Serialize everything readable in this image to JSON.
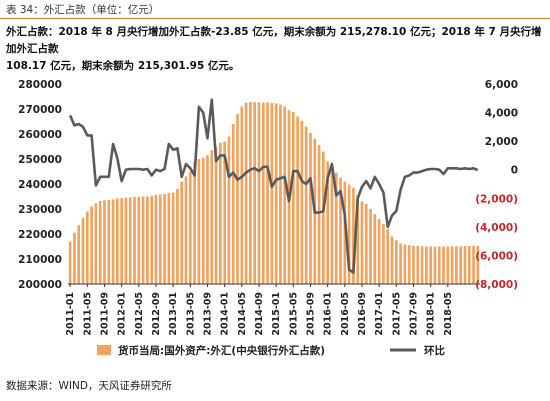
{
  "caption": {
    "label": "表 34：外汇占款（单位：亿元）"
  },
  "summary": {
    "line1": "外汇占款：2018 年 8 月央行增加外汇占款-23.85 亿元，期末余额为 215,278.10 亿元；2018 年 7 月央行增加外汇占款",
    "line2": "108.17 亿元，期末余额为 215,301.95 亿元。"
  },
  "source": {
    "label": "数据来源：WIND，天风证券研究所"
  },
  "chart_data": {
    "type": "bar",
    "x_tick_labels": [
      "2011-01",
      "2011-05",
      "2011-09",
      "2012-01",
      "2012-05",
      "2012-09",
      "2013-01",
      "2013-05",
      "2013-09",
      "2014-01",
      "2014-05",
      "2014-09",
      "2015-01",
      "2015-05",
      "2015-09",
      "2016-01",
      "2016-05",
      "2016-09",
      "2017-01",
      "2017-05",
      "2017-09",
      "2018-01",
      "2018-05"
    ],
    "y_left_ticks": [
      "200000",
      "210000",
      "220000",
      "230000",
      "240000",
      "250000",
      "260000",
      "270000",
      "280000"
    ],
    "y_left_lim": [
      200000,
      280000
    ],
    "y_right_ticks": [
      "6,000",
      "4,000",
      "2,000",
      "0",
      "(2,000)",
      "(4,000)",
      "(6,000)",
      "(8,000)"
    ],
    "y_right_tick_values": [
      6000,
      4000,
      2000,
      0,
      -2000,
      -4000,
      -6000,
      -8000
    ],
    "y_right_lim": [
      -8000,
      6000
    ],
    "start_period": "2011-01",
    "grid": false,
    "legend_position": "bottom",
    "colors": {
      "bars": "#f0a25e",
      "line": "#5a5a5a",
      "right_negative": "#c0282d",
      "axis": "#333333"
    },
    "series": [
      {
        "name": "货币当局:国外资产:外汇(中央银行外汇占款)",
        "type": "bar",
        "axis": "left",
        "values": [
          217000,
          220500,
          223500,
          226500,
          229000,
          231000,
          232300,
          233200,
          233500,
          233600,
          233800,
          234200,
          234300,
          234500,
          234700,
          234800,
          234900,
          235000,
          235000,
          235200,
          235600,
          235800,
          236000,
          236400,
          236600,
          238000,
          241000,
          243000,
          245000,
          249000,
          250000,
          250500,
          251500,
          253500,
          254800,
          256500,
          257000,
          259000,
          264000,
          268000,
          271000,
          272500,
          272800,
          272700,
          272700,
          272600,
          272600,
          272400,
          272200,
          271700,
          271000,
          269500,
          268800,
          267000,
          265200,
          263000,
          260500,
          258000,
          255500,
          253000,
          249000,
          246500,
          244500,
          242500,
          241000,
          239800,
          238500,
          235500,
          233000,
          232000,
          230000,
          228000,
          226000,
          224000,
          222000,
          219000,
          217500,
          216200,
          215800,
          215500,
          215300,
          215200,
          215100,
          215000,
          215000,
          214900,
          215000,
          215000,
          215000,
          215100,
          215100,
          215100,
          215200,
          215200,
          215300,
          215200
        ]
      },
      {
        "name": "环比",
        "type": "line",
        "axis": "right",
        "values": [
          3800,
          3100,
          3200,
          3000,
          2400,
          2400,
          -1100,
          -500,
          -500,
          -500,
          1800,
          800,
          -800,
          0,
          50,
          50,
          50,
          0,
          50,
          -400,
          0,
          -100,
          50,
          1800,
          1400,
          1500,
          -500,
          400,
          100,
          -400,
          4400,
          4000,
          2200,
          4900,
          600,
          1000,
          1000,
          -500,
          -200,
          -700,
          -500,
          -200,
          0,
          100,
          -100,
          200,
          200,
          -1200,
          -700,
          -600,
          -500,
          -2200,
          -100,
          -100,
          -800,
          -1000,
          -600,
          -3000,
          -3000,
          -2900,
          -600,
          400,
          -1800,
          -1500,
          -3200,
          -7000,
          -7200,
          -2000,
          -1200,
          -800,
          -1300,
          -500,
          -1000,
          -1600,
          -4000,
          -3200,
          -2900,
          -1400,
          -500,
          -400,
          -200,
          -200,
          -100,
          0,
          50,
          50,
          0,
          -300,
          100,
          100,
          100,
          50,
          100,
          50,
          100,
          -24
        ]
      }
    ]
  }
}
